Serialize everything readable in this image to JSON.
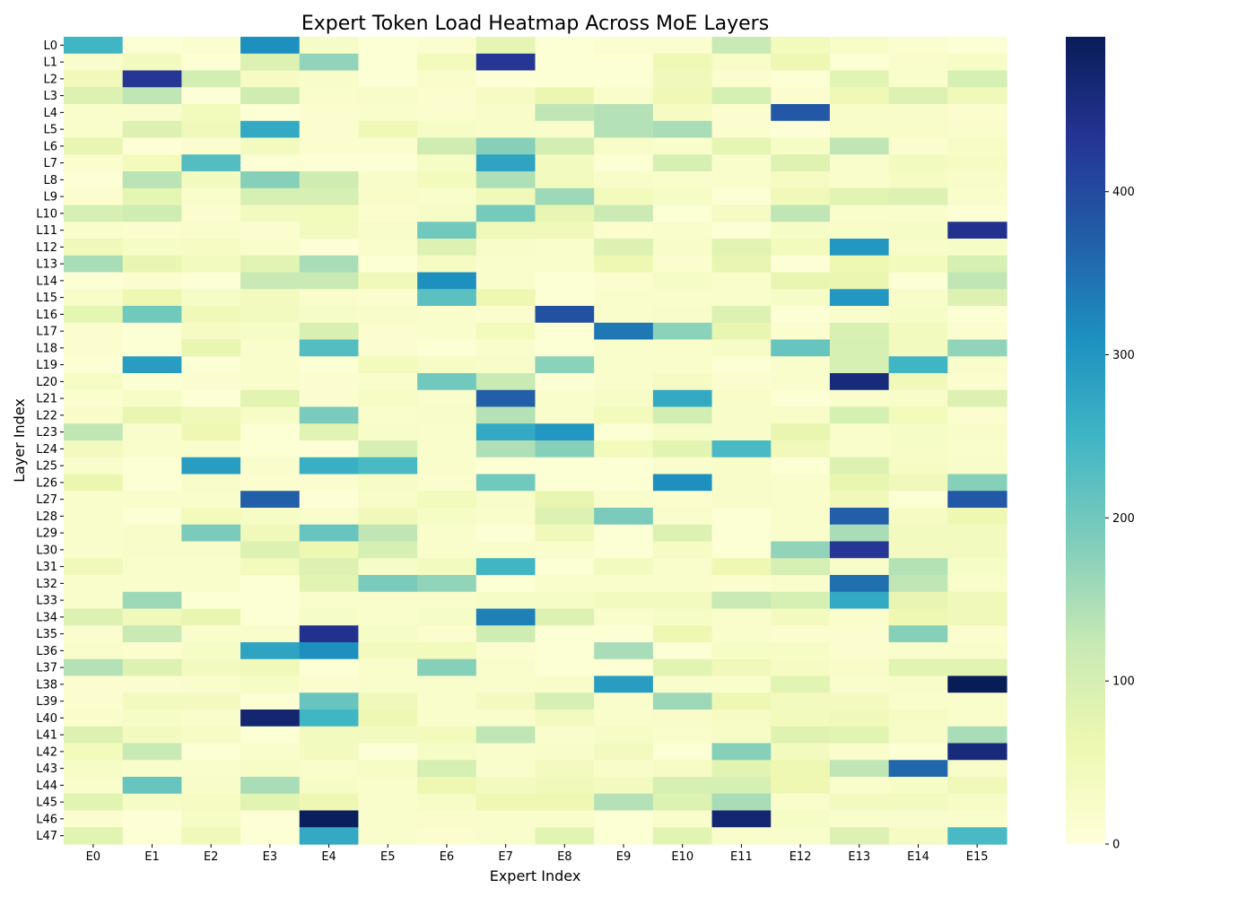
{
  "chart_data": {
    "type": "heatmap",
    "title": "Expert Token Load Heatmap Across MoE Layers",
    "xlabel": "Expert Index",
    "ylabel": "Layer Index",
    "x_labels": [
      "E0",
      "E1",
      "E2",
      "E3",
      "E4",
      "E5",
      "E6",
      "E7",
      "E8",
      "E9",
      "E10",
      "E11",
      "E12",
      "E13",
      "E14",
      "E15"
    ],
    "y_labels": [
      "L0",
      "L1",
      "L2",
      "L3",
      "L4",
      "L5",
      "L6",
      "L7",
      "L8",
      "L9",
      "L10",
      "L11",
      "L12",
      "L13",
      "L14",
      "L15",
      "L16",
      "L17",
      "L18",
      "L19",
      "L20",
      "L21",
      "L22",
      "L23",
      "L24",
      "L25",
      "L26",
      "L27",
      "L28",
      "L29",
      "L30",
      "L31",
      "L32",
      "L33",
      "L34",
      "L35",
      "L36",
      "L37",
      "L38",
      "L39",
      "L40",
      "L41",
      "L42",
      "L43",
      "L44",
      "L45",
      "L46",
      "L47"
    ],
    "colormap": "YlGnBu",
    "vmin": 0,
    "vmax": 495,
    "colorbar_ticks": [
      0,
      100,
      200,
      300,
      400
    ],
    "values": [
      [
        250,
        10,
        15,
        310,
        30,
        10,
        15,
        75,
        10,
        15,
        15,
        120,
        45,
        25,
        15,
        10
      ],
      [
        20,
        40,
        10,
        90,
        170,
        10,
        45,
        430,
        10,
        10,
        55,
        25,
        60,
        10,
        20,
        30
      ],
      [
        50,
        430,
        105,
        35,
        25,
        10,
        20,
        5,
        10,
        10,
        50,
        15,
        10,
        80,
        20,
        100
      ],
      [
        90,
        130,
        5,
        110,
        20,
        25,
        15,
        35,
        65,
        20,
        55,
        100,
        15,
        55,
        90,
        50
      ],
      [
        20,
        20,
        45,
        10,
        15,
        20,
        15,
        25,
        130,
        140,
        35,
        15,
        380,
        25,
        25,
        15
      ],
      [
        20,
        90,
        50,
        270,
        15,
        55,
        30,
        25,
        20,
        140,
        150,
        15,
        5,
        25,
        25,
        20
      ],
      [
        70,
        5,
        15,
        40,
        15,
        15,
        110,
        180,
        105,
        25,
        20,
        75,
        30,
        130,
        15,
        30
      ],
      [
        15,
        45,
        230,
        10,
        10,
        10,
        30,
        280,
        40,
        10,
        100,
        20,
        85,
        20,
        40,
        35
      ],
      [
        10,
        135,
        40,
        180,
        110,
        25,
        45,
        145,
        40,
        25,
        20,
        20,
        35,
        20,
        35,
        25
      ],
      [
        15,
        75,
        20,
        100,
        100,
        25,
        20,
        50,
        160,
        45,
        30,
        10,
        50,
        80,
        90,
        20
      ],
      [
        100,
        110,
        15,
        40,
        45,
        15,
        30,
        195,
        70,
        115,
        10,
        35,
        130,
        20,
        20,
        10
      ],
      [
        20,
        15,
        20,
        15,
        40,
        25,
        200,
        50,
        50,
        15,
        20,
        10,
        30,
        25,
        30,
        440
      ],
      [
        50,
        30,
        35,
        20,
        5,
        20,
        90,
        25,
        20,
        90,
        25,
        80,
        45,
        300,
        25,
        30
      ],
      [
        150,
        70,
        40,
        80,
        150,
        10,
        35,
        20,
        20,
        60,
        15,
        70,
        5,
        60,
        45,
        100
      ],
      [
        10,
        15,
        10,
        120,
        120,
        50,
        310,
        20,
        10,
        15,
        30,
        20,
        70,
        65,
        10,
        130
      ],
      [
        25,
        60,
        30,
        40,
        20,
        15,
        220,
        60,
        10,
        20,
        20,
        20,
        30,
        300,
        25,
        90
      ],
      [
        75,
        200,
        50,
        40,
        30,
        25,
        20,
        15,
        390,
        20,
        25,
        90,
        10,
        20,
        30,
        10
      ],
      [
        15,
        10,
        35,
        30,
        95,
        15,
        20,
        45,
        10,
        340,
        175,
        70,
        15,
        95,
        40,
        15
      ],
      [
        15,
        10,
        70,
        20,
        230,
        15,
        10,
        20,
        10,
        20,
        20,
        30,
        210,
        100,
        40,
        170
      ],
      [
        10,
        290,
        10,
        20,
        10,
        45,
        30,
        25,
        175,
        20,
        20,
        10,
        20,
        100,
        250,
        20
      ],
      [
        30,
        10,
        15,
        20,
        15,
        20,
        200,
        120,
        10,
        20,
        35,
        15,
        20,
        460,
        50,
        15
      ],
      [
        15,
        30,
        5,
        80,
        15,
        30,
        20,
        370,
        20,
        30,
        270,
        25,
        10,
        20,
        25,
        90
      ],
      [
        25,
        70,
        50,
        30,
        190,
        20,
        25,
        140,
        20,
        45,
        105,
        25,
        25,
        100,
        45,
        15
      ],
      [
        130,
        20,
        60,
        10,
        80,
        25,
        20,
        270,
        300,
        10,
        30,
        25,
        70,
        20,
        30,
        25
      ],
      [
        40,
        20,
        20,
        10,
        5,
        100,
        20,
        145,
        180,
        45,
        80,
        240,
        50,
        20,
        30,
        20
      ],
      [
        20,
        10,
        290,
        20,
        260,
        240,
        20,
        10,
        10,
        10,
        20,
        25,
        10,
        90,
        35,
        25
      ],
      [
        65,
        10,
        25,
        15,
        15,
        30,
        15,
        200,
        10,
        10,
        310,
        25,
        20,
        70,
        50,
        180
      ],
      [
        20,
        20,
        20,
        370,
        5,
        25,
        45,
        25,
        70,
        20,
        15,
        25,
        20,
        50,
        10,
        380
      ],
      [
        20,
        10,
        45,
        30,
        20,
        50,
        30,
        20,
        90,
        190,
        20,
        10,
        20,
        370,
        35,
        60
      ],
      [
        20,
        25,
        190,
        50,
        210,
        130,
        20,
        10,
        50,
        10,
        90,
        10,
        20,
        150,
        40,
        40
      ],
      [
        20,
        25,
        25,
        90,
        60,
        100,
        20,
        20,
        20,
        10,
        35,
        10,
        170,
        430,
        40,
        40
      ],
      [
        50,
        20,
        20,
        45,
        90,
        30,
        40,
        250,
        10,
        40,
        20,
        60,
        100,
        25,
        140,
        30
      ],
      [
        20,
        20,
        20,
        10,
        80,
        190,
        170,
        10,
        20,
        20,
        20,
        15,
        20,
        350,
        130,
        20
      ],
      [
        20,
        160,
        10,
        10,
        20,
        20,
        20,
        30,
        30,
        40,
        40,
        120,
        100,
        270,
        70,
        50
      ],
      [
        90,
        50,
        70,
        10,
        30,
        20,
        30,
        330,
        90,
        20,
        30,
        20,
        40,
        20,
        60,
        50
      ],
      [
        15,
        120,
        20,
        20,
        440,
        30,
        15,
        110,
        10,
        10,
        60,
        20,
        15,
        15,
        180,
        15
      ],
      [
        20,
        15,
        30,
        280,
        310,
        40,
        45,
        15,
        10,
        150,
        10,
        30,
        30,
        15,
        20,
        20
      ],
      [
        140,
        90,
        40,
        50,
        10,
        20,
        180,
        20,
        10,
        10,
        80,
        50,
        35,
        25,
        80,
        80
      ],
      [
        15,
        15,
        20,
        30,
        15,
        20,
        20,
        20,
        25,
        290,
        20,
        20,
        80,
        20,
        25,
        495
      ],
      [
        15,
        40,
        40,
        10,
        210,
        50,
        20,
        40,
        100,
        20,
        160,
        60,
        40,
        40,
        20,
        20
      ],
      [
        20,
        30,
        20,
        470,
        250,
        60,
        20,
        20,
        40,
        20,
        25,
        35,
        45,
        50,
        35,
        20
      ],
      [
        90,
        40,
        30,
        10,
        40,
        40,
        45,
        130,
        20,
        30,
        20,
        30,
        85,
        80,
        30,
        150
      ],
      [
        45,
        120,
        10,
        20,
        40,
        5,
        30,
        20,
        25,
        40,
        10,
        180,
        40,
        20,
        10,
        460
      ],
      [
        30,
        20,
        20,
        30,
        20,
        30,
        100,
        20,
        40,
        25,
        35,
        80,
        60,
        130,
        360,
        25
      ],
      [
        20,
        210,
        25,
        150,
        30,
        20,
        60,
        40,
        50,
        40,
        100,
        100,
        60,
        20,
        30,
        50
      ],
      [
        80,
        30,
        35,
        80,
        60,
        20,
        30,
        60,
        60,
        140,
        90,
        150,
        20,
        40,
        40,
        30
      ],
      [
        15,
        5,
        30,
        5,
        490,
        20,
        20,
        20,
        20,
        10,
        20,
        470,
        30,
        20,
        20,
        20
      ],
      [
        80,
        10,
        50,
        10,
        270,
        20,
        15,
        20,
        80,
        10,
        80,
        20,
        20,
        90,
        35,
        240
      ]
    ]
  }
}
